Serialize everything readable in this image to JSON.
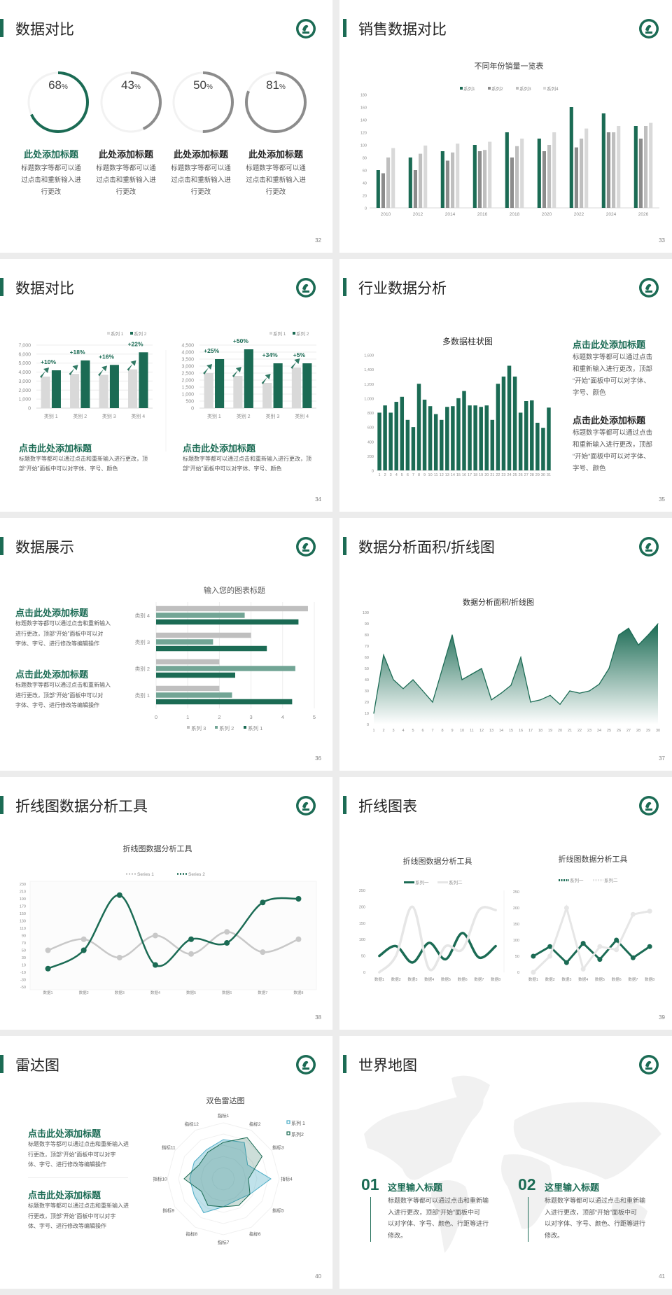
{
  "colors": {
    "green": "#1b6b54",
    "gray": "#8c8c8c",
    "light_gray": "#bfbfbf",
    "lighter_gray": "#d9d9d9",
    "mid_green": "#72a595",
    "teal": "#4bacc6"
  },
  "logo_icon": "school-emblem",
  "slides": [
    {
      "title": "数据对比",
      "page": "32",
      "items": [
        {
          "value": 68,
          "label": "68",
          "unit": "%",
          "heading": "此处添加标题",
          "desc": [
            "标题数字等都可以通",
            "过点击和重新输入进",
            "行更改"
          ]
        },
        {
          "value": 43,
          "label": "43",
          "unit": "%",
          "heading": "此处添加标题",
          "desc": [
            "标题数字等都可以通",
            "过点击和重新输入进",
            "行更改"
          ]
        },
        {
          "value": 50,
          "label": "50",
          "unit": "%",
          "heading": "此处添加标题",
          "desc": [
            "标题数字等都可以通",
            "过点击和重新输入进",
            "行更改"
          ]
        },
        {
          "value": 81,
          "label": "81",
          "unit": "%",
          "heading": "此处添加标题",
          "desc": [
            "标题数字等都可以通",
            "过点击和重新输入进",
            "行更改"
          ]
        }
      ]
    },
    {
      "title": "销售数据对比",
      "page": "33"
    },
    {
      "title": "数据对比",
      "page": "34",
      "blocks": [
        {
          "heading": "点击此处添加标题",
          "desc": [
            "标题数字等都可以通过点击和重新输入进行更改，顶",
            "部“开始”面板中可以对字体、字号、颜色"
          ]
        },
        {
          "heading": "点击此处添加标题",
          "desc": [
            "标题数字等都可以通过点击和重新输入进行更改，顶",
            "部“开始”面板中可以对字体、字号、颜色"
          ]
        }
      ]
    },
    {
      "title": "行业数据分析",
      "page": "35",
      "blocks": [
        {
          "heading": "点击此处添加标题",
          "desc": [
            "标题数字等都可以通过点击",
            "和重新输入进行更改，顶部",
            "“开始”面板中可以对字体、",
            "字号、颜色"
          ]
        },
        {
          "heading": "点击此处添加标题",
          "desc": [
            "标题数字等都可以通过点击",
            "和重新输入进行更改，顶部",
            "“开始”面板中可以对字体、",
            "字号、颜色"
          ]
        }
      ]
    },
    {
      "title": "数据展示",
      "page": "36",
      "blocks": [
        {
          "heading": "点击此处添加标题",
          "desc": [
            "标题数字等都可以通过点击和重新输入",
            "进行更改，顶部“开始”面板中可以对",
            "字体、字号、进行修改等编辑操作"
          ]
        },
        {
          "heading": "点击此处添加标题",
          "desc": [
            "标题数字等都可以通过点击和重新输入",
            "进行更改，顶部“开始”面板中可以对",
            "字体、字号、进行修改等编辑操作"
          ]
        }
      ]
    },
    {
      "title": "数据分析面积/折线图",
      "page": "37"
    },
    {
      "title": "折线图数据分析工具",
      "page": "38"
    },
    {
      "title": "折线图表",
      "page": "39"
    },
    {
      "title": "雷达图",
      "page": "40",
      "blocks": [
        {
          "heading": "点击此处添加标题",
          "desc": [
            "标题数字等都可以通过点击和重新输入进",
            "行更改，顶部“开始”面板中可以对字",
            "体、字号、进行修改等编辑操作"
          ]
        },
        {
          "heading": "点击此处添加标题",
          "desc": [
            "标题数字等都可以通过点击和重新输入进",
            "行更改，顶部“开始”面板中可以对字",
            "体、字号、进行修改等编辑操作"
          ]
        }
      ]
    },
    {
      "title": "世界地图",
      "page": "41",
      "blocks": [
        {
          "number": "01",
          "heading": "这里输入标题",
          "desc": [
            "标题数字等都可以通过点击和重新输",
            "入进行更改，顶部“开始”面板中可",
            "以对字体、字号、颜色、行距等进行",
            "修改。"
          ]
        },
        {
          "number": "02",
          "heading": "这里输入标题",
          "desc": [
            "标题数字等都可以通过点击和重新输",
            "入进行更改，顶部“开始”面板中可",
            "以对字体、字号、颜色、行距等进行",
            "修改。"
          ]
        }
      ]
    }
  ],
  "chart_data": [
    {
      "type": "bar",
      "title": "不同年份销量一览表",
      "categories": [
        "2010",
        "2012",
        "2014",
        "2016",
        "2018",
        "2020",
        "2022",
        "2024",
        "2026"
      ],
      "series": [
        {
          "name": "系列1",
          "values": [
            60,
            80,
            90,
            100,
            120,
            110,
            160,
            150,
            130
          ]
        },
        {
          "name": "系列2",
          "values": [
            55,
            60,
            75,
            90,
            80,
            90,
            96,
            120,
            110
          ]
        },
        {
          "name": "系列3",
          "values": [
            80,
            86,
            88,
            92,
            98,
            100,
            110,
            120,
            130
          ]
        },
        {
          "name": "系列4",
          "values": [
            95,
            99,
            102,
            105,
            110,
            120,
            126,
            130,
            135
          ]
        }
      ],
      "ylim": [
        0,
        180
      ],
      "yticks": [
        "0",
        "20",
        "40",
        "60",
        "80",
        "100",
        "120",
        "140",
        "160",
        "180"
      ],
      "grid": false,
      "legend": "top"
    },
    {
      "type": "bar",
      "categories": [
        "类别 1",
        "类别 2",
        "类别 3",
        "类别 4"
      ],
      "series": [
        {
          "name": "系列 1",
          "values": [
            3500,
            3800,
            3700,
            4300
          ]
        },
        {
          "name": "系列 2",
          "values": [
            4200,
            5300,
            4800,
            6200
          ]
        }
      ],
      "annotations": [
        "+10%",
        "+18%",
        "+16%",
        "+22%"
      ],
      "ylim": [
        0,
        7000
      ],
      "yticks": [
        "0",
        "1,000",
        "2,000",
        "3,000",
        "4,000",
        "5,000",
        "6,000",
        "7,000"
      ],
      "grid": true,
      "legend": "top-right"
    },
    {
      "type": "bar",
      "categories": [
        "类别 1",
        "类别 2",
        "类别 3",
        "类别 4"
      ],
      "series": [
        {
          "name": "系列 1",
          "values": [
            2500,
            2300,
            1800,
            2900
          ]
        },
        {
          "name": "系列 2",
          "values": [
            3500,
            4200,
            3200,
            3200
          ]
        }
      ],
      "annotations": [
        "+25%",
        "+50%",
        "+34%",
        "+5%"
      ],
      "ylim": [
        0,
        4500
      ],
      "yticks": [
        "0",
        "500",
        "1,000",
        "1,500",
        "2,000",
        "2,500",
        "3,000",
        "3,500",
        "4,000",
        "4,500"
      ],
      "grid": true,
      "legend": "top-right"
    },
    {
      "type": "bar",
      "title": "多数据柱状图",
      "categories": [
        "1",
        "2",
        "3",
        "4",
        "5",
        "6",
        "7",
        "8",
        "9",
        "10",
        "11",
        "12",
        "13",
        "14",
        "15",
        "16",
        "17",
        "18",
        "19",
        "20",
        "21",
        "22",
        "23",
        "24",
        "25",
        "26",
        "27",
        "28",
        "29",
        "30",
        "31"
      ],
      "values": [
        800,
        900,
        800,
        950,
        1020,
        700,
        600,
        1200,
        980,
        890,
        780,
        700,
        880,
        890,
        1000,
        1100,
        900,
        900,
        880,
        900,
        700,
        1200,
        1300,
        1450,
        1300,
        800,
        960,
        970,
        660,
        590,
        870
      ],
      "ylim": [
        0,
        1600
      ],
      "yticks": [
        "0",
        "200",
        "400",
        "600",
        "800",
        "1,000",
        "1,200",
        "1,400",
        "1,600"
      ],
      "grid": false
    },
    {
      "type": "bar",
      "orientation": "horizontal",
      "title": "输入您的图表标题",
      "categories": [
        "类别 1",
        "类别 2",
        "类别 3",
        "类别 4"
      ],
      "series": [
        {
          "name": "系列 1",
          "values": [
            4.3,
            2.5,
            3.5,
            4.5
          ]
        },
        {
          "name": "系列 2",
          "values": [
            2.4,
            4.4,
            1.8,
            2.8
          ]
        },
        {
          "name": "系列 3",
          "values": [
            2,
            2,
            3,
            4.8
          ]
        }
      ],
      "xlim": [
        0,
        5
      ],
      "xticks": [
        "0",
        "1",
        "2",
        "3",
        "4",
        "5"
      ],
      "grid": true,
      "legend": "bottom"
    },
    {
      "type": "area",
      "title": "数据分析面积/折线图",
      "categories": [
        "1",
        "2",
        "3",
        "4",
        "5",
        "6",
        "7",
        "8",
        "9",
        "10",
        "11",
        "12",
        "13",
        "14",
        "15",
        "16",
        "17",
        "18",
        "19",
        "20",
        "21",
        "22",
        "23",
        "24",
        "25",
        "26",
        "27",
        "28",
        "29",
        "30"
      ],
      "values": [
        10,
        62,
        40,
        32,
        40,
        30,
        20,
        50,
        80,
        40,
        45,
        50,
        22,
        28,
        35,
        60,
        20,
        22,
        26,
        18,
        30,
        28,
        30,
        36,
        50,
        80,
        86,
        71,
        80,
        90
      ],
      "ylim": [
        0,
        100
      ],
      "yticks": [
        "0",
        "10",
        "20",
        "30",
        "40",
        "50",
        "60",
        "70",
        "80",
        "90",
        "100"
      ],
      "grid": false
    },
    {
      "type": "line",
      "title": "折线图数据分析工具",
      "categories": [
        "数据1",
        "数据2",
        "数据3",
        "数据4",
        "数据5",
        "数据6",
        "数据7",
        "数据8"
      ],
      "series": [
        {
          "name": "Series 1",
          "values": [
            50,
            80,
            30,
            90,
            40,
            100,
            45,
            80
          ]
        },
        {
          "name": "Series 2",
          "values": [
            0,
            50,
            200,
            10,
            80,
            70,
            180,
            190
          ]
        }
      ],
      "ylim": [
        -50,
        230
      ],
      "yticks": [
        "-50",
        "-30",
        "-10",
        "10",
        "30",
        "50",
        "70",
        "90",
        "110",
        "130",
        "150",
        "170",
        "190",
        "210",
        "230"
      ],
      "smooth": true,
      "legend": "top"
    },
    {
      "type": "line",
      "title": "折线图数据分析工具",
      "categories": [
        "数据1",
        "数据2",
        "数据3",
        "数据4",
        "数据5",
        "数据6",
        "数据7",
        "数据8"
      ],
      "series": [
        {
          "name": "系列一",
          "values": [
            50,
            80,
            30,
            90,
            40,
            120,
            45,
            80
          ]
        },
        {
          "name": "系列二",
          "values": [
            0,
            50,
            200,
            10,
            80,
            70,
            190,
            190
          ]
        }
      ],
      "ylim": [
        0,
        250
      ],
      "yticks": [
        "0",
        "50",
        "100",
        "150",
        "200",
        "250"
      ],
      "smooth": true,
      "legend": "top"
    },
    {
      "type": "line",
      "title": "折线图数据分析工具",
      "categories": [
        "数据1",
        "数据2",
        "数据3",
        "数据4",
        "数据5",
        "数据6",
        "数据7",
        "数据8"
      ],
      "series": [
        {
          "name": "系列一",
          "values": [
            50,
            80,
            30,
            90,
            40,
            100,
            45,
            80
          ]
        },
        {
          "name": "系列二",
          "values": [
            0,
            50,
            200,
            10,
            80,
            70,
            180,
            190
          ]
        }
      ],
      "ylim": [
        0,
        250
      ],
      "yticks": [
        "0",
        "50",
        "100",
        "150",
        "200",
        "250"
      ],
      "smooth": false,
      "markers": true,
      "legend": "top"
    },
    {
      "type": "radar",
      "title": "双色雷达图",
      "categories": [
        "指标1",
        "指标2",
        "指标3",
        "指标4",
        "指标5",
        "指标6",
        "指标7",
        "指标8",
        "指标9",
        "指标10",
        "指标11",
        "指标12"
      ],
      "series": [
        {
          "name": "系列 1",
          "values": [
            70,
            75,
            50,
            85,
            55,
            45,
            50,
            70,
            60,
            60,
            60,
            60
          ]
        },
        {
          "name": "系列2",
          "values": [
            65,
            85,
            80,
            45,
            55,
            55,
            50,
            55,
            45,
            70,
            50,
            55
          ]
        }
      ],
      "rlim": [
        0,
        100
      ],
      "legend": "top-right"
    }
  ]
}
